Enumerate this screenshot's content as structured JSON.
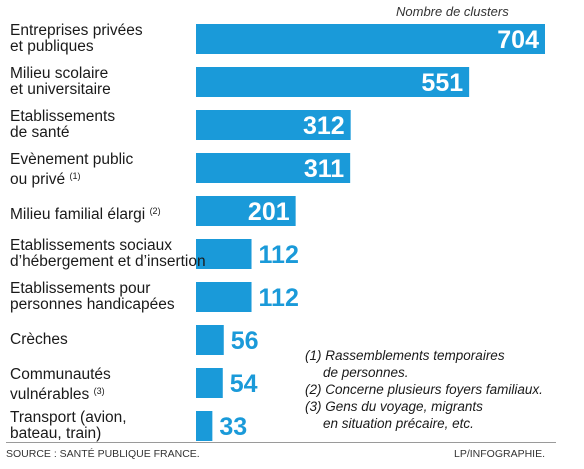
{
  "chart_data": {
    "type": "bar",
    "orientation": "horizontal",
    "unit_label": "Nombre de clusters",
    "bar_color": "#1a9ad9",
    "value_color_inside": "#ffffff",
    "value_color_outside": "#1a9ad9",
    "categories": [
      {
        "lines": [
          "Entreprises privées",
          "et publiques"
        ],
        "note": "",
        "value": 704
      },
      {
        "lines": [
          "Milieu scolaire",
          "et universitaire"
        ],
        "note": "",
        "value": 551
      },
      {
        "lines": [
          "Etablissements",
          "de santé"
        ],
        "note": "",
        "value": 312
      },
      {
        "lines": [
          "Evènement public",
          "ou privé"
        ],
        "note": "(1)",
        "value": 311
      },
      {
        "lines": [
          "Milieu familial élargi"
        ],
        "note": "(2)",
        "value": 201
      },
      {
        "lines": [
          "Etablissements sociaux",
          "d’hébergement et d’insertion"
        ],
        "note": "",
        "value": 112
      },
      {
        "lines": [
          "Etablissements pour",
          "personnes handicapées"
        ],
        "note": "",
        "value": 112
      },
      {
        "lines": [
          "Crèches"
        ],
        "note": "",
        "value": 56
      },
      {
        "lines": [
          "Communautés",
          "vulnérables"
        ],
        "note": "(3)",
        "value": 54
      },
      {
        "lines": [
          "Transport (avion,",
          "bateau, train)"
        ],
        "note": "",
        "value": 33
      }
    ],
    "xlim": [
      0,
      704
    ],
    "grid": false,
    "legend": "none"
  },
  "notes": [
    {
      "text": "(1) Rassemblements temporaires",
      "indent": false
    },
    {
      "text": "de personnes.",
      "indent": true
    },
    {
      "text": "(2) Concerne plusieurs foyers familiaux.",
      "indent": false
    },
    {
      "text": "(3) Gens du voyage, migrants",
      "indent": false
    },
    {
      "text": "en situation précaire, etc.",
      "indent": true
    }
  ],
  "source": "SOURCE : SANTÉ PUBLIQUE FRANCE.",
  "credit": "LP/INFOGRAPHIE."
}
